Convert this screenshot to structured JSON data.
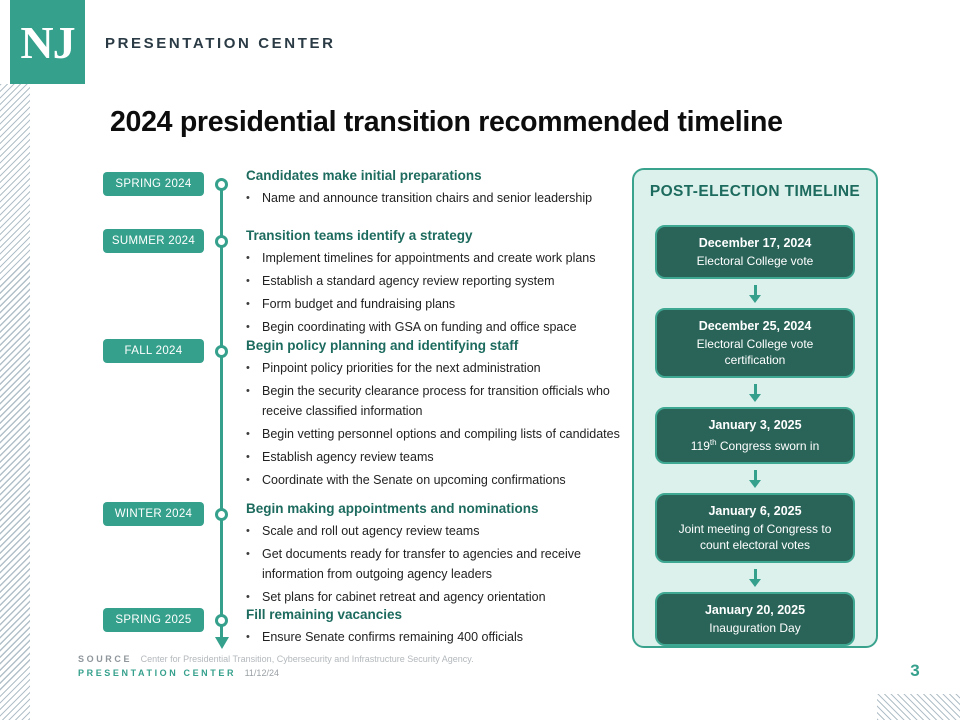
{
  "header": {
    "logo": "NJ",
    "brand": "PRESENTATION CENTER"
  },
  "title": "2024 presidential transition recommended timeline",
  "colors": {
    "teal": "#35a08c",
    "dark_teal_card": "#2a6459",
    "heading_teal": "#1d6b5e",
    "panel_background": "#ddf1ec",
    "stripe_gray": "#b1c0c9"
  },
  "timeline": {
    "sections": [
      {
        "label": "SPRING 2024",
        "heading": "Candidates make initial preparations",
        "bullets": [
          "Name and announce transition chairs and senior leadership"
        ]
      },
      {
        "label": "SUMMER 2024",
        "heading": "Transition teams identify a strategy",
        "bullets": [
          "Implement timelines for appointments and create work plans",
          "Establish a standard agency review reporting system",
          "Form budget and fundraising plans",
          "Begin coordinating with GSA on funding and office space"
        ]
      },
      {
        "label": "FALL 2024",
        "heading": "Begin policy planning and identifying staff",
        "bullets": [
          "Pinpoint policy priorities for the next administration",
          "Begin the security clearance process for transition officials who receive classified information",
          "Begin vetting personnel options and compiling lists of candidates",
          "Establish agency review teams",
          "Coordinate with the Senate on upcoming confirmations"
        ]
      },
      {
        "label": "WINTER 2024",
        "heading": "Begin making appointments and nominations",
        "bullets": [
          "Scale and roll out agency review teams",
          "Get documents ready for transfer to agencies and receive information from outgoing agency leaders",
          "Set plans for cabinet retreat and agency orientation"
        ]
      },
      {
        "label": "SPRING 2025",
        "heading": "Fill remaining vacancies",
        "bullets": [
          "Ensure Senate confirms remaining 400 officials"
        ]
      }
    ]
  },
  "post_election": {
    "title": "POST-ELECTION TIMELINE",
    "events": [
      {
        "date": "December 17, 2024",
        "description": [
          {
            "text": "Electoral College vote"
          }
        ]
      },
      {
        "date": "December 25, 2024",
        "description": [
          {
            "text": "Electoral College vote certification"
          }
        ]
      },
      {
        "date": "January 3, 2025",
        "description": [
          {
            "text": "119"
          },
          {
            "text": "th",
            "sup": true
          },
          {
            "text": " Congress sworn in"
          }
        ]
      },
      {
        "date": "January 6, 2025",
        "description": [
          {
            "text": "Joint meeting of Congress to count electoral votes"
          }
        ]
      },
      {
        "date": "January 20, 2025",
        "description": [
          {
            "text": "Inauguration Day"
          }
        ]
      }
    ]
  },
  "footer": {
    "source_label": "SOURCE",
    "source_text": "Center for Presidential Transition, Cybersecurity and Infrastructure Security Agency.",
    "brand": "PRESENTATION CENTER",
    "date": "11/12/24",
    "page_number": "3"
  }
}
